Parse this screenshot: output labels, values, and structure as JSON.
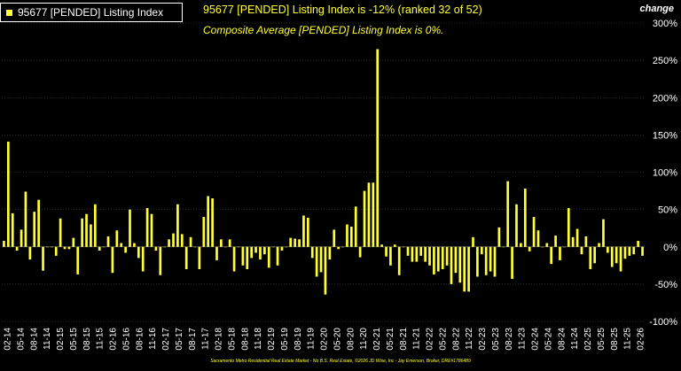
{
  "legend": {
    "label": "95677 [PENDED] Listing Index",
    "swatch_color": "#ffff33"
  },
  "headline": "95677 [PENDED] Listing Index is -12% (ranked 32 of 52)",
  "subhead": "Composite Average [PENDED] Listing Index is 0%.",
  "axis_unit_label": "change",
  "footer": "Sacramento Metro Residential Real Estate Market - No B.S. Real Estate, ©2026 JD Wise, Inc - Jay Emerson, Broker, DRE#1786489",
  "chart_data": {
    "type": "bar",
    "title": "95677 [PENDED] Listing Index is -12% (ranked 32 of 52)",
    "subtitle": "Composite Average [PENDED] Listing Index is 0%.",
    "ylabel": "change",
    "ylim": [
      -100,
      300
    ],
    "yticks": [
      -100,
      -50,
      0,
      50,
      100,
      150,
      200,
      250,
      300
    ],
    "ytick_labels": [
      "-100%",
      "-50%",
      "0%",
      "50%",
      "100%",
      "150%",
      "200%",
      "250%",
      "300%"
    ],
    "grid": true,
    "bar_color": "#ffff33",
    "xtick_labels": [
      "02-14",
      "05-14",
      "08-14",
      "11-14",
      "02-15",
      "05-15",
      "08-15",
      "11-15",
      "02-16",
      "05-16",
      "08-16",
      "11-16",
      "02-17",
      "05-17",
      "08-17",
      "11-17",
      "02-18",
      "05-18",
      "08-18",
      "11-18",
      "02-19",
      "05-19",
      "08-19",
      "11-19",
      "02-20",
      "05-20",
      "08-20",
      "11-20",
      "02-21",
      "05-21",
      "08-21",
      "11-21",
      "02-22",
      "05-22",
      "08-22",
      "11-22",
      "02-23",
      "05-23",
      "08-23",
      "11-23",
      "02-24",
      "05-24",
      "08-24",
      "11-24",
      "02-25",
      "05-25",
      "08-25",
      "11-25",
      "02-26"
    ],
    "values": [
      8,
      141,
      45,
      -5,
      23,
      74,
      -17,
      47,
      63,
      -32,
      0,
      0,
      -12,
      38,
      -3,
      -3,
      12,
      -37,
      38,
      44,
      30,
      57,
      -5,
      0,
      14,
      -35,
      22,
      5,
      -8,
      50,
      5,
      -15,
      -33,
      52,
      44,
      -5,
      -38,
      0,
      10,
      18,
      57,
      17,
      -30,
      13,
      0,
      -30,
      40,
      68,
      65,
      -18,
      10,
      0,
      10,
      -33,
      0,
      -25,
      -30,
      -15,
      -8,
      -17,
      -10,
      -28,
      0,
      -25,
      -5,
      0,
      12,
      11,
      10,
      42,
      39,
      -15,
      -40,
      -34,
      -64,
      -17,
      23,
      -3,
      0,
      30,
      27,
      54,
      -14,
      75,
      86,
      86,
      265,
      3,
      -13,
      -25,
      3,
      -38,
      0,
      -12,
      -20,
      -20,
      -12,
      -20,
      -25,
      -37,
      -33,
      -30,
      -25,
      -50,
      -35,
      -48,
      -60,
      -60,
      13,
      -40,
      -10,
      -38,
      -33,
      -40,
      26,
      0,
      88,
      -43,
      57,
      5,
      78,
      -6,
      40,
      22,
      0,
      5,
      -23,
      15,
      -18,
      0,
      52,
      13,
      24,
      -10,
      14,
      -30,
      -22,
      5,
      37,
      -8,
      -27,
      -22,
      -33,
      -16,
      -12,
      -10,
      8,
      -12
    ]
  }
}
